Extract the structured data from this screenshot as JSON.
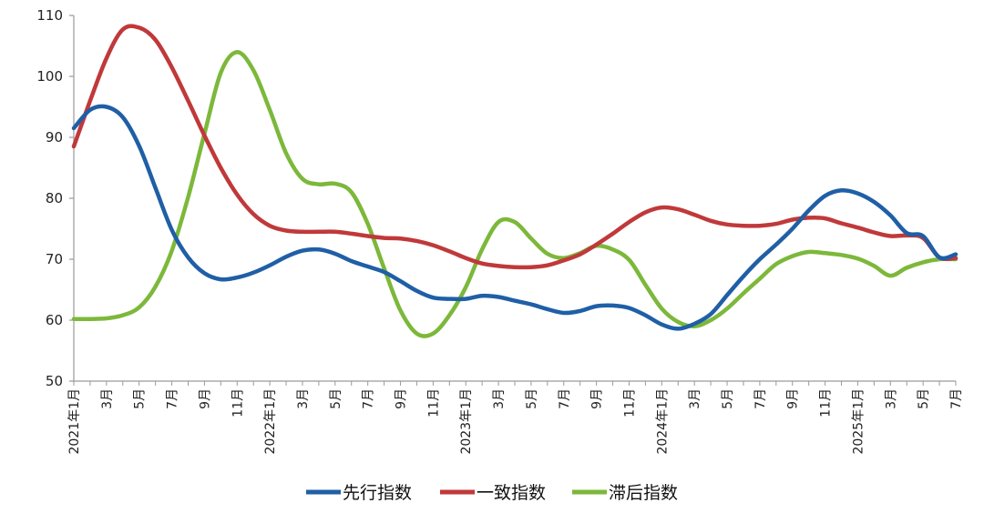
{
  "chart_data": {
    "type": "line",
    "ylim": [
      50,
      110
    ],
    "yticks": [
      50,
      60,
      70,
      80,
      90,
      100,
      110
    ],
    "grid": false,
    "legend_position": "bottom",
    "x": [
      "2021年1月",
      "2021年2月",
      "2021年3月",
      "2021年4月",
      "2021年5月",
      "2021年6月",
      "2021年7月",
      "2021年8月",
      "2021年9月",
      "2021年10月",
      "2021年11月",
      "2021年12月",
      "2022年1月",
      "2022年2月",
      "2022年3月",
      "2022年4月",
      "2022年5月",
      "2022年6月",
      "2022年7月",
      "2022年8月",
      "2022年9月",
      "2022年10月",
      "2022年11月",
      "2022年12月",
      "2023年1月",
      "2023年2月",
      "2023年3月",
      "2023年4月",
      "2023年5月",
      "2023年6月",
      "2023年7月",
      "2023年8月",
      "2023年9月",
      "2023年10月",
      "2023年11月",
      "2023年12月",
      "2024年1月",
      "2024年2月",
      "2024年3月",
      "2024年4月",
      "2024年5月",
      "2024年6月",
      "2024年7月",
      "2024年8月",
      "2024年9月",
      "2024年10月",
      "2024年11月",
      "2024年12月",
      "2025年1月",
      "2025年2月",
      "2025年3月",
      "2025年4月",
      "2025年5月",
      "2025年6月",
      "2025年7月"
    ],
    "xtick_labels": [
      "2021年1月",
      "",
      "3月",
      "",
      "5月",
      "",
      "7月",
      "",
      "9月",
      "",
      "11月",
      "",
      "2022年1月",
      "",
      "3月",
      "",
      "5月",
      "",
      "7月",
      "",
      "9月",
      "",
      "11月",
      "",
      "2023年1月",
      "",
      "3月",
      "",
      "5月",
      "",
      "7月",
      "",
      "9月",
      "",
      "11月",
      "",
      "2024年1月",
      "",
      "3月",
      "",
      "5月",
      "",
      "7月",
      "",
      "9月",
      "",
      "11月",
      "",
      "2025年1月",
      "",
      "3月",
      "",
      "5月",
      "",
      "7月"
    ],
    "series": [
      {
        "name": "先行指数",
        "color": "#1f5fa6",
        "values": [
          91.5,
          94.5,
          95.0,
          93.3,
          88.6,
          81.7,
          74.8,
          70.3,
          67.7,
          66.7,
          67.0,
          67.8,
          69.0,
          70.4,
          71.4,
          71.6,
          70.9,
          69.7,
          68.8,
          67.9,
          66.4,
          64.8,
          63.7,
          63.5,
          63.5,
          64.0,
          63.8,
          63.2,
          62.6,
          61.8,
          61.2,
          61.5,
          62.3,
          62.4,
          62.0,
          60.8,
          59.3,
          58.6,
          59.4,
          61.0,
          64.1,
          67.2,
          70.0,
          72.4,
          75.0,
          78.0,
          80.4,
          81.3,
          80.8,
          79.4,
          77.2,
          74.3,
          73.8,
          70.3,
          70.8
        ]
      },
      {
        "name": "一致指数",
        "color": "#c0393a",
        "values": [
          88.5,
          96.0,
          103.0,
          107.7,
          108.0,
          106.0,
          101.5,
          96.0,
          90.3,
          85.0,
          80.6,
          77.4,
          75.5,
          74.7,
          74.5,
          74.5,
          74.5,
          74.2,
          73.8,
          73.5,
          73.4,
          73.0,
          72.3,
          71.3,
          70.2,
          69.3,
          68.9,
          68.7,
          68.7,
          69.0,
          69.8,
          70.8,
          72.4,
          74.2,
          76.1,
          77.7,
          78.5,
          78.2,
          77.3,
          76.3,
          75.7,
          75.5,
          75.5,
          75.8,
          76.5,
          76.8,
          76.7,
          75.9,
          75.2,
          74.4,
          73.8,
          73.9,
          73.5,
          70.3,
          70.2
        ]
      },
      {
        "name": "滞后指数",
        "color": "#7cb83a",
        "values": [
          60.2,
          60.2,
          60.3,
          60.8,
          62.1,
          65.5,
          71.4,
          80.2,
          90.6,
          100.6,
          104.0,
          101.0,
          94.5,
          87.4,
          83.2,
          82.3,
          82.4,
          81.0,
          75.8,
          68.5,
          61.6,
          57.8,
          57.8,
          60.8,
          65.4,
          71.6,
          76.1,
          76.1,
          73.4,
          70.9,
          70.2,
          71.0,
          72.2,
          71.6,
          69.9,
          65.8,
          61.9,
          59.7,
          59.0,
          60.0,
          61.9,
          64.4,
          66.8,
          69.2,
          70.5,
          71.2,
          71.0,
          70.7,
          70.1,
          68.9,
          67.3,
          68.6,
          69.5,
          70.0,
          70.0
        ]
      }
    ]
  }
}
